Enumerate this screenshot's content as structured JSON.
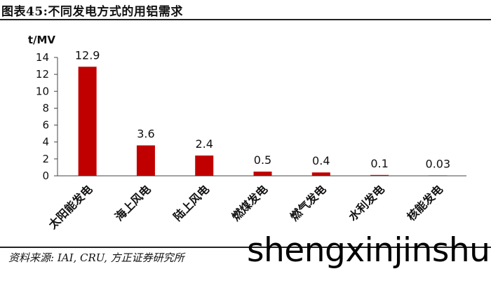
{
  "title": "图表45:不同发电方式的用铝需求",
  "source": "资料来源: IAI, CRU, 方正证券研究所",
  "watermark": "shengxinjinshu",
  "chart_data": {
    "type": "bar",
    "unit_label": "t/MV",
    "categories": [
      "太阳能发电",
      "海上风电",
      "陆上风电",
      "燃煤发电",
      "燃气发电",
      "水利发电",
      "核能发电"
    ],
    "values": [
      12.9,
      3.6,
      2.4,
      0.5,
      0.4,
      0.1,
      0.03
    ],
    "data_labels": [
      "12.9",
      "3.6",
      "2.4",
      "0.5",
      "0.4",
      "0.1",
      "0.03"
    ],
    "yticks": [
      0,
      2,
      4,
      6,
      8,
      10,
      12,
      14
    ],
    "ylim": [
      0,
      14
    ],
    "bar_color": "#c00000",
    "legend": false,
    "grid": false
  }
}
